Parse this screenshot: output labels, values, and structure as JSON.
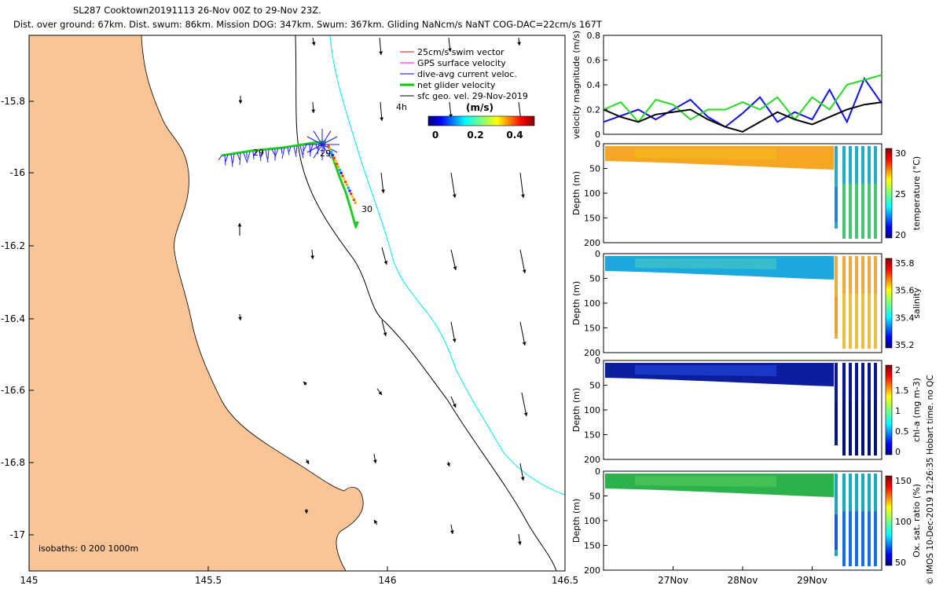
{
  "header": {
    "line1": "SL287 Cooktown20191113 26-Nov 00Z to 29-Nov 23Z.",
    "line2": "Dist. over ground: 67km. Dist. swum: 86km. Mission DOG: 347km. Swum: 367km. Gliding NaNcm/s NaNT COG-DAC=22cm/s 167T"
  },
  "stamp": "© IMOS 10-Dec-2019 12:26:35 Hobart time. no QC",
  "colors": {
    "land": "#f9c596",
    "coastline": "#000000",
    "isobath_200": "#000000",
    "isobath_1000": "#00e5ee",
    "swim": "#ff0000",
    "gps": "#ff00ff",
    "current": "#0000ff",
    "net": "#00cc00",
    "sfc": "#000000",
    "velocity_series_blue": "#1010ee",
    "velocity_series_green": "#22dd22",
    "velocity_series_black": "#000000"
  },
  "map": {
    "x_ticks": [
      "145",
      "145.5",
      "146",
      "146.5"
    ],
    "y_ticks": [
      "-15.8",
      "-16",
      "-16.2",
      "-16.4",
      "-16.6",
      "-16.8",
      "-17"
    ],
    "legend": [
      {
        "key": "swim",
        "label": "25cm/s swim vector"
      },
      {
        "key": "gps",
        "label": "GPS surface velocity"
      },
      {
        "key": "current",
        "label": "dive-avg current veloc."
      },
      {
        "key": "net",
        "label": "net glider velocity"
      },
      {
        "key": "sfc",
        "label": "sfc geo. vel. 29-Nov-2019"
      }
    ],
    "age_label": "4h",
    "colorbar_title": "(m/s)",
    "colorbar_ticks": [
      "0",
      "0.2",
      "0.4"
    ],
    "isobath_text": "isobaths: 0   200  1000m",
    "day_labels": [
      "29",
      "29",
      "30"
    ]
  },
  "chart_data": [
    {
      "type": "line",
      "title": "",
      "ylabel": "velocity magnitude (m/s)",
      "ylim": [
        0,
        0.8
      ],
      "yticks": [
        "0",
        "0.2",
        "0.4",
        "0.6",
        "0.8"
      ],
      "x": [
        26.0,
        26.25,
        26.5,
        26.75,
        27.0,
        27.25,
        27.5,
        27.75,
        28.0,
        28.25,
        28.5,
        28.75,
        29.0,
        29.25,
        29.5,
        29.75,
        30.0
      ],
      "series": [
        {
          "name": "blue",
          "color": "#1010ee",
          "values": [
            0.1,
            0.15,
            0.2,
            0.12,
            0.2,
            0.28,
            0.14,
            0.06,
            0.17,
            0.3,
            0.1,
            0.18,
            0.12,
            0.36,
            0.1,
            0.45,
            0.25
          ]
        },
        {
          "name": "green",
          "color": "#22dd22",
          "values": [
            0.2,
            0.26,
            0.1,
            0.28,
            0.24,
            0.12,
            0.2,
            0.2,
            0.26,
            0.2,
            0.3,
            0.12,
            0.3,
            0.2,
            0.4,
            0.44,
            0.48
          ]
        },
        {
          "name": "black",
          "color": "#000000",
          "values": [
            0.2,
            0.14,
            0.1,
            0.16,
            0.18,
            0.2,
            0.12,
            0.06,
            0.02,
            0.1,
            0.18,
            0.12,
            0.08,
            0.14,
            0.2,
            0.24,
            0.26
          ]
        }
      ]
    },
    {
      "type": "heatmap",
      "variable": "temperature",
      "ylabel": "Depth (m)",
      "cbar_label": "temperature (°C)",
      "cbar_ticks": [
        "20",
        "25",
        "30"
      ],
      "yticks": [
        "0",
        "50",
        "100",
        "150",
        "200"
      ],
      "ylim": [
        200,
        0
      ],
      "surface_value": "27-29 °C",
      "deep_value": "19-22 °C"
    },
    {
      "type": "heatmap",
      "variable": "salinity",
      "ylabel": "Depth (m)",
      "cbar_label": "salinity",
      "cbar_ticks": [
        "35.2",
        "35.4",
        "35.6",
        "35.8"
      ],
      "yticks": [
        "0",
        "50",
        "100",
        "150",
        "200"
      ],
      "ylim": [
        200,
        0
      ],
      "surface_value": "35.3-35.5",
      "deep_value": "35.4-35.6"
    },
    {
      "type": "heatmap",
      "variable": "chl-a",
      "ylabel": "Depth (m)",
      "cbar_label": "chl-a (mg m-3)",
      "cbar_ticks": [
        "0",
        "0.5",
        "1",
        "1.5",
        "2"
      ],
      "yticks": [
        "0",
        "50",
        "100",
        "150",
        "200"
      ],
      "ylim": [
        200,
        0
      ],
      "surface_value": "0-0.3",
      "deep_value": "0-0.3"
    },
    {
      "type": "heatmap",
      "variable": "oxygen",
      "ylabel": "Depth (m)",
      "cbar_label": "Ox. sat. ratio (%)",
      "cbar_ticks": [
        "50",
        "100",
        "150"
      ],
      "yticks": [
        "0",
        "50",
        "100",
        "150",
        "200"
      ],
      "ylim": [
        200,
        0
      ],
      "surface_value": "100-120 %",
      "deep_value": "60-80 %",
      "xticks": [
        "27Nov",
        "28Nov",
        "29Nov"
      ]
    }
  ]
}
